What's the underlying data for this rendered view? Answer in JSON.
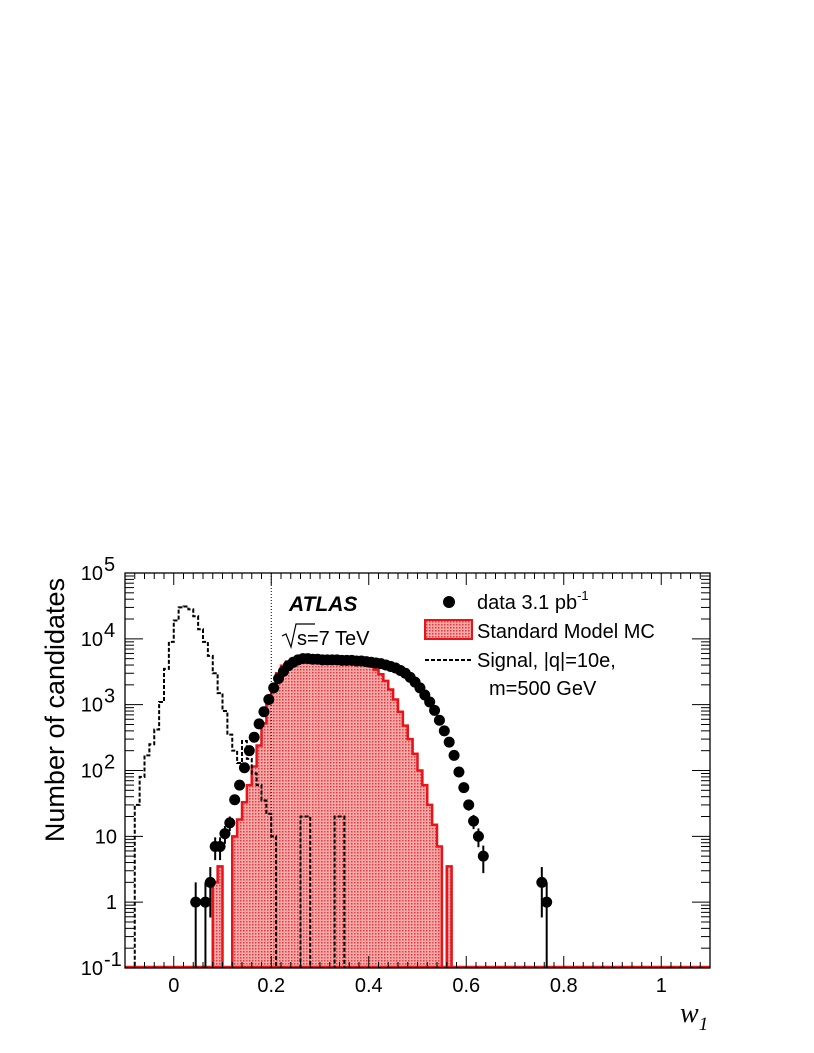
{
  "chart_data": {
    "type": "histogram",
    "x_axis": {
      "label": "w",
      "label_subscript": "1",
      "range": [
        -0.1,
        1.1
      ],
      "ticks": [
        0,
        0.2,
        0.4,
        0.6,
        0.8,
        1
      ],
      "tick_labels": [
        "0",
        "0.2",
        "0.4",
        "0.6",
        "0.8",
        "1"
      ]
    },
    "y_axis": {
      "label": "Number of candidates",
      "scale": "log",
      "range": [
        0.1,
        100000
      ],
      "ticks": [
        0.1,
        1,
        10,
        100,
        1000,
        10000,
        100000
      ],
      "tick_labels": [
        {
          "base": "10",
          "sup": "-1"
        },
        {
          "base": "1",
          "sup": ""
        },
        {
          "base": "10",
          "sup": ""
        },
        {
          "base": "10",
          "sup": "2"
        },
        {
          "base": "10",
          "sup": "3"
        },
        {
          "base": "10",
          "sup": "4"
        },
        {
          "base": "10",
          "sup": "5"
        }
      ]
    },
    "cut_line_x": 0.2,
    "annotations": {
      "experiment": "ATLAS",
      "energy_sqrt": "s",
      "energy_rest": "=7 TeV"
    },
    "legend": [
      {
        "key": "data",
        "label": "data 3.1 pb",
        "sup": "-1"
      },
      {
        "key": "mc",
        "label": "Standard Model MC"
      },
      {
        "key": "signal",
        "label": "Signal, |q|=10e,"
      },
      {
        "key": "signal_cont",
        "label": "m=500 GeV"
      }
    ],
    "bin_width": 0.01,
    "series": [
      {
        "name": "Standard Model MC",
        "style": "filled-histogram",
        "color": "#e8141a",
        "fill": "#f26f6f",
        "bins_start": 0.07,
        "values": [
          0.1,
          2,
          3.5,
          0.1,
          0.1,
          10,
          18,
          33,
          60,
          115,
          240,
          520,
          1080,
          1900,
          3000,
          3900,
          4500,
          4800,
          4950,
          5000,
          5000,
          4950,
          4900,
          4850,
          4800,
          4800,
          4750,
          4700,
          4650,
          4600,
          4500,
          4300,
          4100,
          3800,
          3400,
          2900,
          2300,
          1700,
          1200,
          780,
          480,
          300,
          180,
          100,
          60,
          30,
          15,
          7,
          0.1,
          3.5,
          0.1
        ]
      },
      {
        "name": "data 3.1 pb-1",
        "style": "markers",
        "color": "#000000",
        "points": [
          [
            0.045,
            1
          ],
          [
            0.065,
            1
          ],
          [
            0.075,
            2
          ],
          [
            0.085,
            7
          ],
          [
            0.095,
            7
          ],
          [
            0.105,
            11
          ],
          [
            0.115,
            16
          ],
          [
            0.125,
            36
          ],
          [
            0.135,
            60
          ],
          [
            0.145,
            110
          ],
          [
            0.155,
            200
          ],
          [
            0.165,
            320
          ],
          [
            0.175,
            510
          ],
          [
            0.185,
            780
          ],
          [
            0.195,
            1200
          ],
          [
            0.205,
            1800
          ],
          [
            0.215,
            2500
          ],
          [
            0.225,
            3200
          ],
          [
            0.235,
            3900
          ],
          [
            0.245,
            4400
          ],
          [
            0.255,
            4800
          ],
          [
            0.265,
            5000
          ],
          [
            0.275,
            5000
          ],
          [
            0.285,
            4900
          ],
          [
            0.295,
            4900
          ],
          [
            0.305,
            4800
          ],
          [
            0.315,
            4800
          ],
          [
            0.325,
            4800
          ],
          [
            0.335,
            4800
          ],
          [
            0.345,
            4700
          ],
          [
            0.355,
            4700
          ],
          [
            0.365,
            4700
          ],
          [
            0.375,
            4600
          ],
          [
            0.385,
            4600
          ],
          [
            0.395,
            4500
          ],
          [
            0.405,
            4400
          ],
          [
            0.415,
            4300
          ],
          [
            0.425,
            4200
          ],
          [
            0.435,
            4000
          ],
          [
            0.445,
            3800
          ],
          [
            0.455,
            3600
          ],
          [
            0.465,
            3300
          ],
          [
            0.475,
            3000
          ],
          [
            0.485,
            2600
          ],
          [
            0.495,
            2200
          ],
          [
            0.505,
            1800
          ],
          [
            0.515,
            1400
          ],
          [
            0.525,
            1100
          ],
          [
            0.535,
            820
          ],
          [
            0.545,
            580
          ],
          [
            0.555,
            400
          ],
          [
            0.565,
            270
          ],
          [
            0.575,
            170
          ],
          [
            0.585,
            95
          ],
          [
            0.595,
            55
          ],
          [
            0.605,
            30
          ],
          [
            0.615,
            17
          ],
          [
            0.625,
            10
          ],
          [
            0.635,
            5
          ],
          [
            0.755,
            2
          ],
          [
            0.765,
            1
          ]
        ]
      },
      {
        "name": "Signal, |q|=10e, m=500 GeV",
        "style": "dashed-histogram",
        "color": "#000000",
        "bins_start": -0.1,
        "values": [
          0.1,
          0.1,
          30,
          80,
          170,
          250,
          420,
          1100,
          3500,
          9000,
          19000,
          30000,
          31000,
          28000,
          22000,
          14000,
          9000,
          5500,
          3000,
          1500,
          800,
          350,
          200,
          130,
          280,
          150,
          90,
          60,
          35,
          22,
          10,
          0.1,
          0.1,
          0.1,
          0.1,
          0.1,
          20,
          20,
          0.1,
          0.1,
          0.1,
          0.1,
          0.1,
          20,
          20,
          0.1,
          0.1,
          0.1
        ]
      }
    ]
  }
}
